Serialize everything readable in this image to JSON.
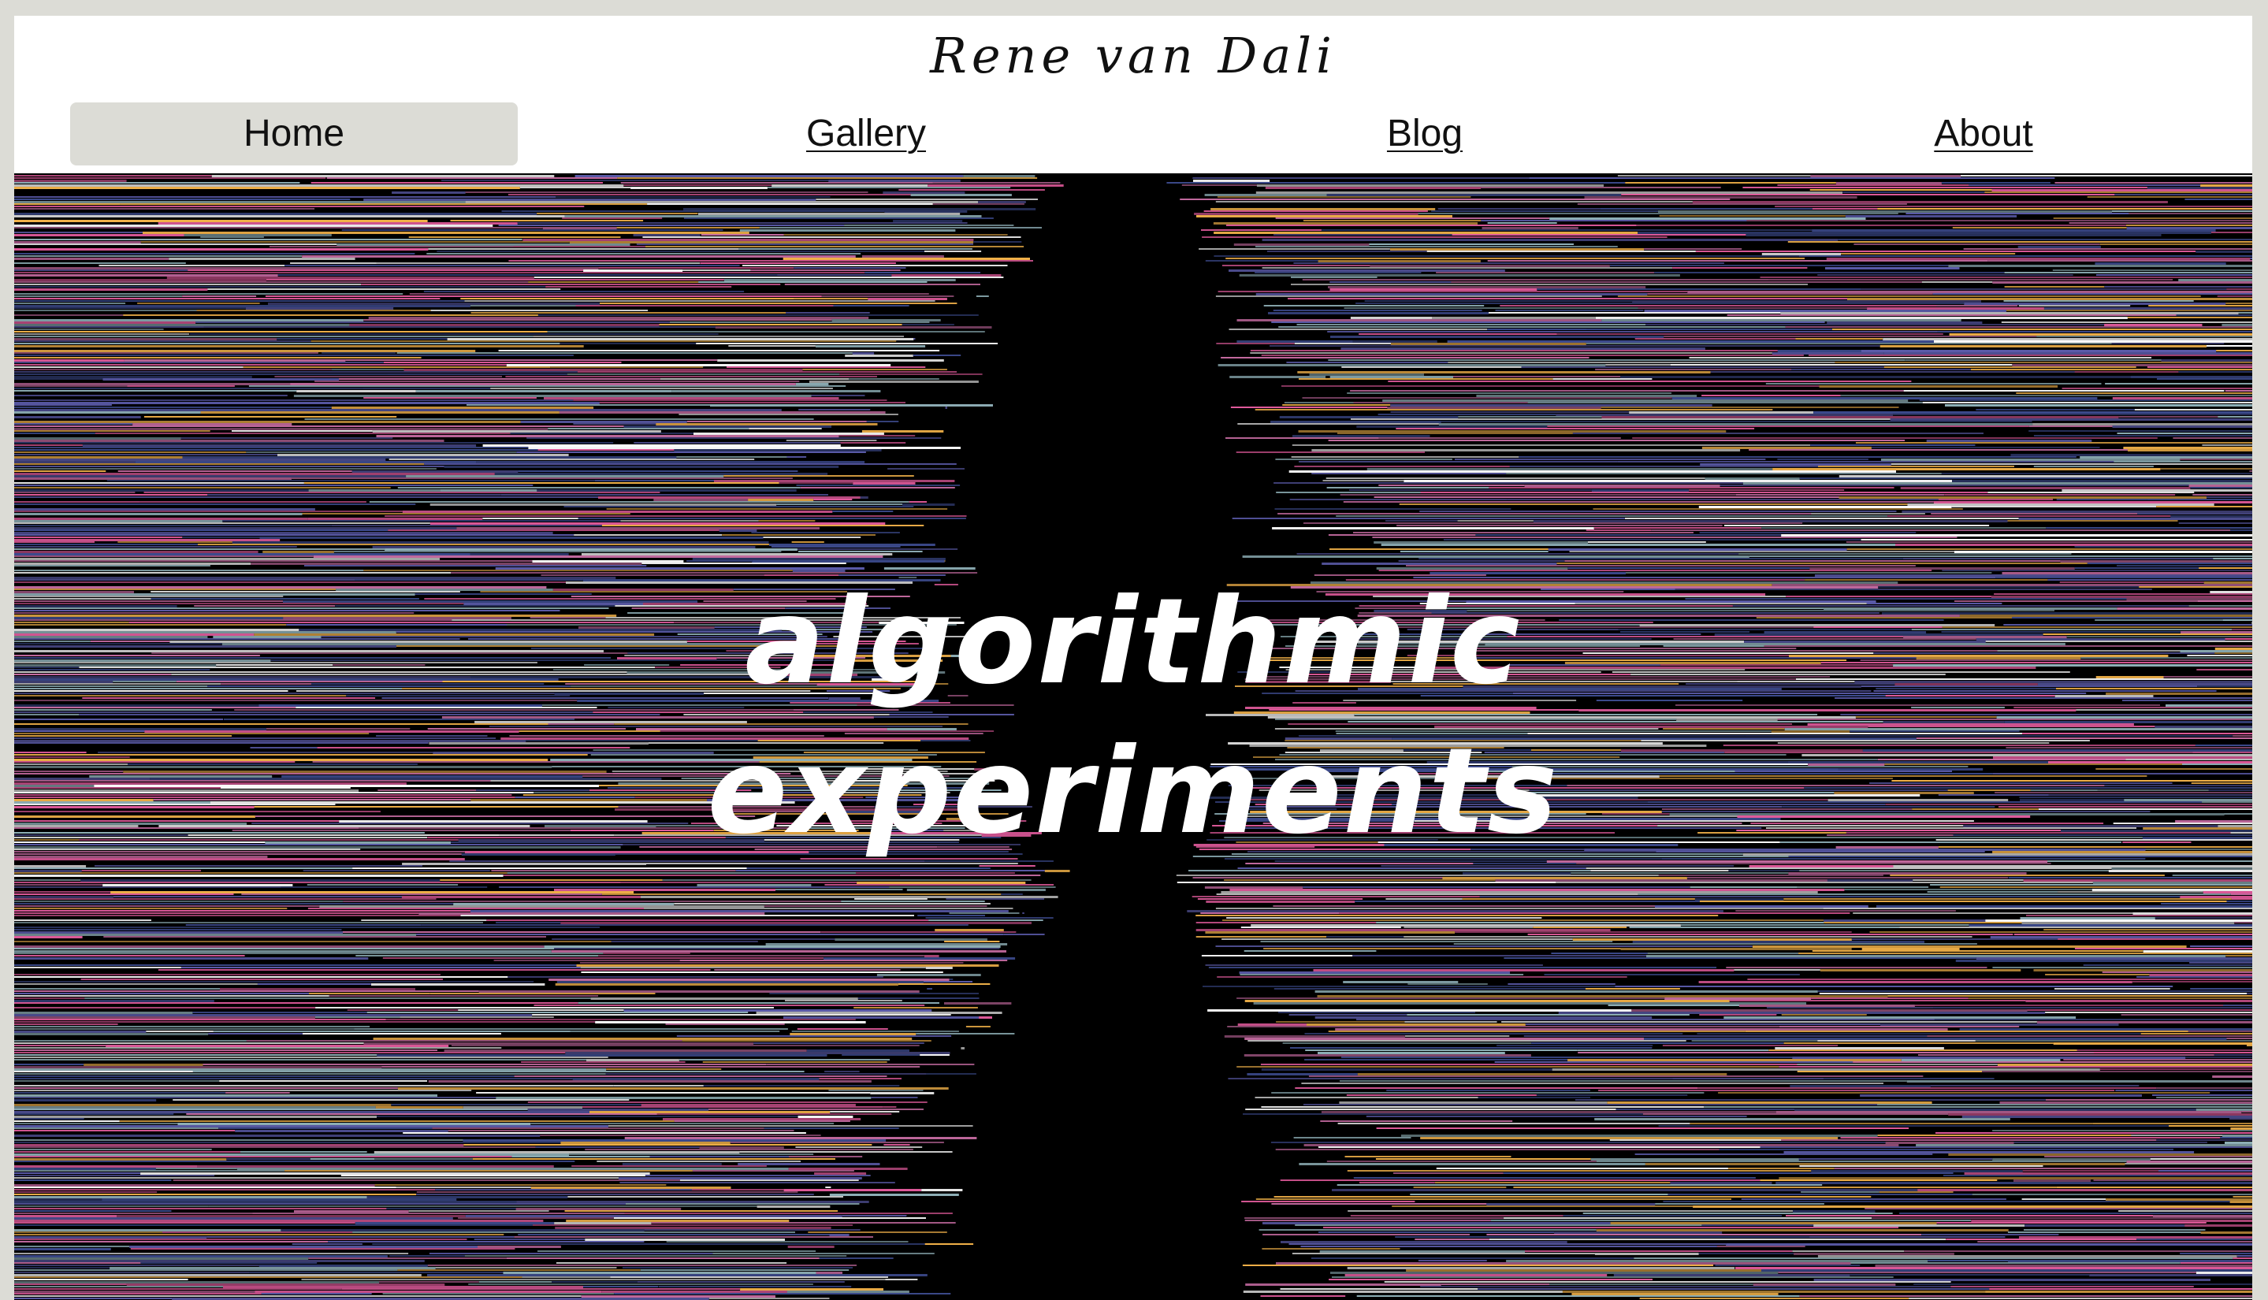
{
  "site": {
    "title": "Rene van Dali"
  },
  "nav": {
    "items": [
      {
        "label": "Home",
        "active": true
      },
      {
        "label": "Gallery",
        "active": false
      },
      {
        "label": "Blog",
        "active": false
      },
      {
        "label": "About",
        "active": false
      }
    ]
  },
  "hero": {
    "title_line1": "algorithmic",
    "title_line2": "experiments",
    "background": "#000000",
    "stripe_colors": [
      "#e05a9b",
      "#5a5aa8",
      "#ffffff",
      "#8fb0b8",
      "#f0b048",
      "#3c4a8c",
      "#c46aa0"
    ]
  },
  "colors": {
    "page_background": "#dcdcd6",
    "header_background": "#ffffff",
    "active_tab": "#dcdcd6",
    "text": "#111111"
  }
}
